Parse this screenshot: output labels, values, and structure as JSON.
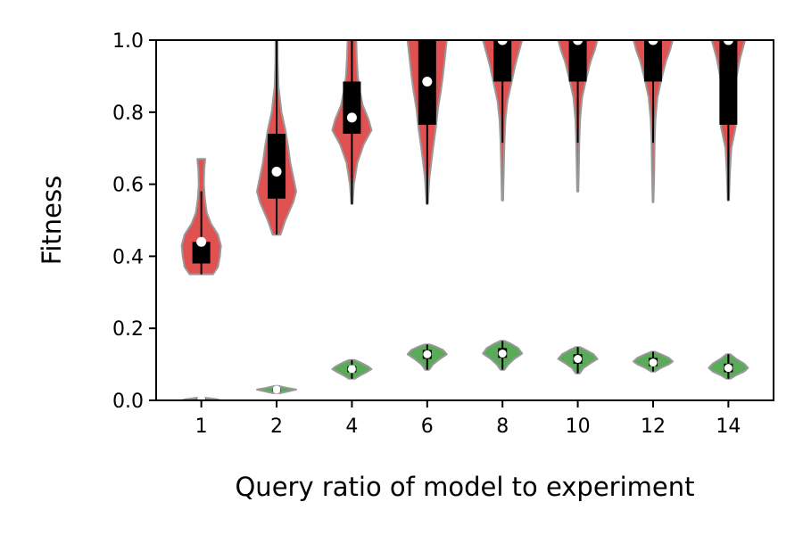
{
  "chart_data": {
    "type": "violin",
    "title": "",
    "xlabel": "Query ratio of model to experiment",
    "ylabel": "Fitness",
    "categories": [
      "1",
      "2",
      "4",
      "6",
      "8",
      "10",
      "12",
      "14"
    ],
    "ylim": [
      0.0,
      1.0
    ],
    "yticks": [
      "0.0",
      "0.2",
      "0.4",
      "0.6",
      "0.8",
      "1.0"
    ],
    "grid": false,
    "legend": "none",
    "series": [
      {
        "color": "#e05252",
        "edge_color": "#999999",
        "distributions": [
          {
            "min": 0.35,
            "q1": 0.38,
            "median": 0.44,
            "q3": 0.44,
            "max": 0.67,
            "whisker_high": 0.58,
            "profile": [
              [
                0.35,
                0.6
              ],
              [
                0.37,
                0.85
              ],
              [
                0.4,
                0.95
              ],
              [
                0.43,
                1.0
              ],
              [
                0.46,
                0.85
              ],
              [
                0.49,
                0.5
              ],
              [
                0.52,
                0.28
              ],
              [
                0.56,
                0.18
              ],
              [
                0.6,
                0.13
              ],
              [
                0.64,
                0.15
              ],
              [
                0.67,
                0.2
              ]
            ]
          },
          {
            "min": 0.46,
            "q1": 0.56,
            "median": 0.635,
            "q3": 0.74,
            "max": 1.0,
            "profile": [
              [
                0.46,
                0.2
              ],
              [
                0.5,
                0.45
              ],
              [
                0.55,
                0.85
              ],
              [
                0.58,
                1.0
              ],
              [
                0.62,
                0.85
              ],
              [
                0.66,
                0.7
              ],
              [
                0.7,
                0.6
              ],
              [
                0.75,
                0.45
              ],
              [
                0.8,
                0.25
              ],
              [
                0.87,
                0.1
              ],
              [
                0.94,
                0.06
              ],
              [
                1.0,
                0.05
              ]
            ]
          },
          {
            "min": 0.545,
            "q1": 0.74,
            "median": 0.785,
            "q3": 0.885,
            "max": 1.0,
            "profile": [
              [
                0.545,
                0.03
              ],
              [
                0.6,
                0.1
              ],
              [
                0.66,
                0.28
              ],
              [
                0.71,
                0.6
              ],
              [
                0.75,
                1.0
              ],
              [
                0.78,
                0.85
              ],
              [
                0.82,
                0.55
              ],
              [
                0.86,
                0.4
              ],
              [
                0.9,
                0.3
              ],
              [
                0.95,
                0.25
              ],
              [
                1.0,
                0.22
              ]
            ]
          },
          {
            "min": 0.545,
            "q1": 0.765,
            "median": 0.885,
            "q3": 1.0,
            "max": 1.0,
            "profile": [
              [
                0.545,
                0.03
              ],
              [
                0.62,
                0.12
              ],
              [
                0.7,
                0.3
              ],
              [
                0.76,
                0.45
              ],
              [
                0.81,
                0.55
              ],
              [
                0.86,
                0.7
              ],
              [
                0.9,
                0.8
              ],
              [
                0.95,
                0.9
              ],
              [
                1.0,
                1.0
              ]
            ]
          },
          {
            "min": 0.555,
            "q1": 0.885,
            "median": 1.0,
            "q3": 1.0,
            "max": 1.0,
            "whisker_low": 0.715,
            "profile": [
              [
                0.555,
                0.03
              ],
              [
                0.65,
                0.07
              ],
              [
                0.72,
                0.1
              ],
              [
                0.78,
                0.15
              ],
              [
                0.83,
                0.25
              ],
              [
                0.88,
                0.45
              ],
              [
                0.93,
                0.65
              ],
              [
                0.97,
                0.85
              ],
              [
                1.0,
                1.0
              ]
            ]
          },
          {
            "min": 0.58,
            "q1": 0.885,
            "median": 1.0,
            "q3": 1.0,
            "max": 1.0,
            "whisker_low": 0.715,
            "profile": [
              [
                0.58,
                0.03
              ],
              [
                0.66,
                0.06
              ],
              [
                0.72,
                0.08
              ],
              [
                0.78,
                0.12
              ],
              [
                0.84,
                0.22
              ],
              [
                0.89,
                0.42
              ],
              [
                0.94,
                0.65
              ],
              [
                0.97,
                0.85
              ],
              [
                1.0,
                1.0
              ]
            ]
          },
          {
            "min": 0.55,
            "q1": 0.885,
            "median": 1.0,
            "q3": 1.0,
            "max": 1.0,
            "whisker_low": 0.715,
            "profile": [
              [
                0.55,
                0.02
              ],
              [
                0.64,
                0.06
              ],
              [
                0.72,
                0.08
              ],
              [
                0.78,
                0.12
              ],
              [
                0.84,
                0.22
              ],
              [
                0.89,
                0.42
              ],
              [
                0.94,
                0.65
              ],
              [
                0.97,
                0.85
              ],
              [
                1.0,
                1.0
              ]
            ]
          },
          {
            "min": 0.555,
            "q1": 0.765,
            "median": 1.0,
            "q3": 1.0,
            "max": 1.0,
            "profile": [
              [
                0.555,
                0.03
              ],
              [
                0.63,
                0.08
              ],
              [
                0.7,
                0.15
              ],
              [
                0.76,
                0.38
              ],
              [
                0.8,
                0.3
              ],
              [
                0.85,
                0.3
              ],
              [
                0.9,
                0.42
              ],
              [
                0.95,
                0.6
              ],
              [
                1.0,
                0.85
              ]
            ]
          }
        ]
      },
      {
        "color": "#5aaa5a",
        "edge_color": "#999999",
        "distributions": [
          {
            "min": 0.0,
            "q1": 0.0,
            "median": 0.003,
            "q3": 0.005,
            "max": 0.008,
            "profile": [
              [
                0.0,
                1.0
              ],
              [
                0.003,
                0.8
              ],
              [
                0.006,
                0.4
              ],
              [
                0.008,
                0.1
              ]
            ]
          },
          {
            "min": 0.02,
            "q1": 0.025,
            "median": 0.03,
            "q3": 0.033,
            "max": 0.04,
            "profile": [
              [
                0.02,
                0.2
              ],
              [
                0.025,
                0.6
              ],
              [
                0.03,
                1.0
              ],
              [
                0.035,
                0.5
              ],
              [
                0.04,
                0.1
              ]
            ]
          },
          {
            "min": 0.06,
            "q1": 0.078,
            "median": 0.087,
            "q3": 0.095,
            "max": 0.112,
            "profile": [
              [
                0.06,
                0.15
              ],
              [
                0.07,
                0.45
              ],
              [
                0.08,
                0.8
              ],
              [
                0.087,
                1.0
              ],
              [
                0.095,
                0.8
              ],
              [
                0.105,
                0.45
              ],
              [
                0.112,
                0.15
              ]
            ]
          },
          {
            "min": 0.085,
            "q1": 0.115,
            "median": 0.128,
            "q3": 0.14,
            "max": 0.155,
            "profile": [
              [
                0.085,
                0.1
              ],
              [
                0.1,
                0.3
              ],
              [
                0.115,
                0.65
              ],
              [
                0.128,
                1.0
              ],
              [
                0.14,
                0.8
              ],
              [
                0.15,
                0.4
              ],
              [
                0.155,
                0.15
              ]
            ]
          },
          {
            "min": 0.085,
            "q1": 0.118,
            "median": 0.13,
            "q3": 0.145,
            "max": 0.165,
            "profile": [
              [
                0.085,
                0.1
              ],
              [
                0.1,
                0.3
              ],
              [
                0.115,
                0.6
              ],
              [
                0.13,
                1.0
              ],
              [
                0.145,
                0.8
              ],
              [
                0.158,
                0.4
              ],
              [
                0.165,
                0.1
              ]
            ]
          },
          {
            "min": 0.075,
            "q1": 0.102,
            "median": 0.115,
            "q3": 0.128,
            "max": 0.148,
            "profile": [
              [
                0.075,
                0.1
              ],
              [
                0.09,
                0.3
              ],
              [
                0.105,
                0.7
              ],
              [
                0.115,
                1.0
              ],
              [
                0.128,
                0.8
              ],
              [
                0.14,
                0.4
              ],
              [
                0.148,
                0.1
              ]
            ]
          },
          {
            "min": 0.08,
            "q1": 0.095,
            "median": 0.105,
            "q3": 0.118,
            "max": 0.135,
            "profile": [
              [
                0.08,
                0.1
              ],
              [
                0.09,
                0.4
              ],
              [
                0.1,
                0.8
              ],
              [
                0.108,
                1.0
              ],
              [
                0.118,
                0.8
              ],
              [
                0.128,
                0.4
              ],
              [
                0.135,
                0.1
              ]
            ]
          },
          {
            "min": 0.06,
            "q1": 0.078,
            "median": 0.09,
            "q3": 0.102,
            "max": 0.128,
            "profile": [
              [
                0.06,
                0.1
              ],
              [
                0.07,
                0.4
              ],
              [
                0.08,
                0.8
              ],
              [
                0.09,
                1.0
              ],
              [
                0.102,
                0.8
              ],
              [
                0.115,
                0.4
              ],
              [
                0.128,
                0.1
              ]
            ]
          }
        ]
      }
    ]
  }
}
